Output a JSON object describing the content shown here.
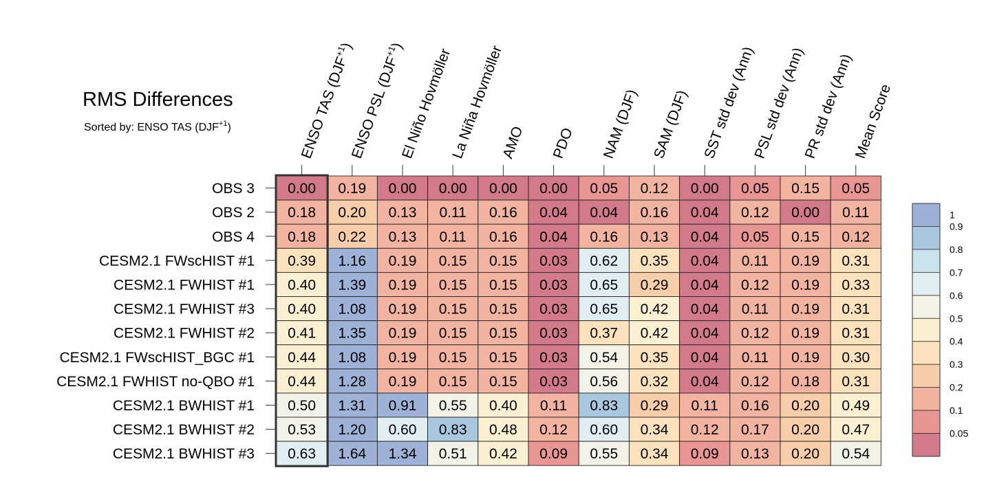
{
  "chart_data": {
    "type": "heatmap",
    "title": "RMS Differences",
    "subtitle": {
      "prefix": "Sorted by: ENSO TAS (DJF",
      "superscript": "+1",
      "suffix": ")"
    },
    "columns": [
      {
        "text": "ENSO TAS (DJF",
        "sup": "+1",
        "tail": ")"
      },
      {
        "text": "ENSO PSL (DJF",
        "sup": "+1",
        "tail": ")"
      },
      {
        "text": "El Niño Hovmöller",
        "sup": "",
        "tail": ""
      },
      {
        "text": "La Niña Hovmöller",
        "sup": "",
        "tail": ""
      },
      {
        "text": "AMO",
        "sup": "",
        "tail": ""
      },
      {
        "text": "PDO",
        "sup": "",
        "tail": ""
      },
      {
        "text": "NAM (DJF)",
        "sup": "",
        "tail": ""
      },
      {
        "text": "SAM (DJF)",
        "sup": "",
        "tail": ""
      },
      {
        "text": "SST std dev (Ann)",
        "sup": "",
        "tail": ""
      },
      {
        "text": "PSL std dev (Ann)",
        "sup": "",
        "tail": ""
      },
      {
        "text": "PR std dev (Ann)",
        "sup": "",
        "tail": ""
      },
      {
        "text": "Mean Score",
        "sup": "",
        "tail": ""
      }
    ],
    "rows": [
      "OBS 3",
      "OBS 2",
      "OBS 4",
      "CESM2.1 FWscHIST #1",
      "CESM2.1 FWHIST #1",
      "CESM2.1 FWHIST #3",
      "CESM2.1 FWHIST #2",
      "CESM2.1 FWscHIST_BGC #1",
      "CESM2.1 FWHIST no-QBO #1",
      "CESM2.1 BWHIST #1",
      "CESM2.1 BWHIST #2",
      "CESM2.1 BWHIST #3"
    ],
    "values": [
      [
        0.0,
        0.19,
        0.0,
        0.0,
        0.0,
        0.0,
        0.05,
        0.12,
        0.0,
        0.05,
        0.15,
        0.05
      ],
      [
        0.18,
        0.2,
        0.13,
        0.11,
        0.16,
        0.04,
        0.04,
        0.16,
        0.04,
        0.12,
        0.0,
        0.11
      ],
      [
        0.18,
        0.22,
        0.13,
        0.11,
        0.16,
        0.04,
        0.16,
        0.13,
        0.04,
        0.05,
        0.15,
        0.12
      ],
      [
        0.39,
        1.16,
        0.19,
        0.15,
        0.15,
        0.03,
        0.62,
        0.35,
        0.04,
        0.11,
        0.19,
        0.31
      ],
      [
        0.4,
        1.39,
        0.19,
        0.15,
        0.15,
        0.03,
        0.65,
        0.29,
        0.04,
        0.12,
        0.19,
        0.33
      ],
      [
        0.4,
        1.08,
        0.19,
        0.15,
        0.15,
        0.03,
        0.65,
        0.42,
        0.04,
        0.11,
        0.19,
        0.31
      ],
      [
        0.41,
        1.35,
        0.19,
        0.15,
        0.15,
        0.03,
        0.37,
        0.42,
        0.04,
        0.12,
        0.19,
        0.31
      ],
      [
        0.44,
        1.08,
        0.19,
        0.15,
        0.15,
        0.03,
        0.54,
        0.35,
        0.04,
        0.11,
        0.19,
        0.3
      ],
      [
        0.44,
        1.28,
        0.19,
        0.15,
        0.15,
        0.03,
        0.56,
        0.32,
        0.04,
        0.12,
        0.18,
        0.31
      ],
      [
        0.5,
        1.31,
        0.91,
        0.55,
        0.4,
        0.11,
        0.83,
        0.29,
        0.11,
        0.16,
        0.2,
        0.49
      ],
      [
        0.53,
        1.2,
        0.6,
        0.83,
        0.48,
        0.12,
        0.6,
        0.34,
        0.12,
        0.17,
        0.2,
        0.47
      ],
      [
        0.63,
        1.64,
        1.34,
        0.51,
        0.42,
        0.09,
        0.55,
        0.34,
        0.09,
        0.13,
        0.2,
        0.54
      ]
    ],
    "highlighted_column": "ENSO TAS (DJF+1)",
    "colorbar": {
      "boundaries": [
        0.05,
        0.1,
        0.2,
        0.3,
        0.4,
        0.5,
        0.6,
        0.7,
        0.8,
        0.9,
        1
      ],
      "tick_labels": [
        "0.05",
        "0.1",
        "0.2",
        "0.3",
        "0.4",
        "0.5",
        "0.6",
        "0.7",
        "0.8",
        "0.9",
        "1"
      ],
      "colors": [
        "#d27a8a",
        "#e89593",
        "#f3b3a1",
        "#f8cdaa",
        "#fbe2bc",
        "#fcf0d3",
        "#f2f2e8",
        "#e0eef2",
        "#c9e2ed",
        "#a9c8e0",
        "#9eb1d6"
      ]
    }
  }
}
